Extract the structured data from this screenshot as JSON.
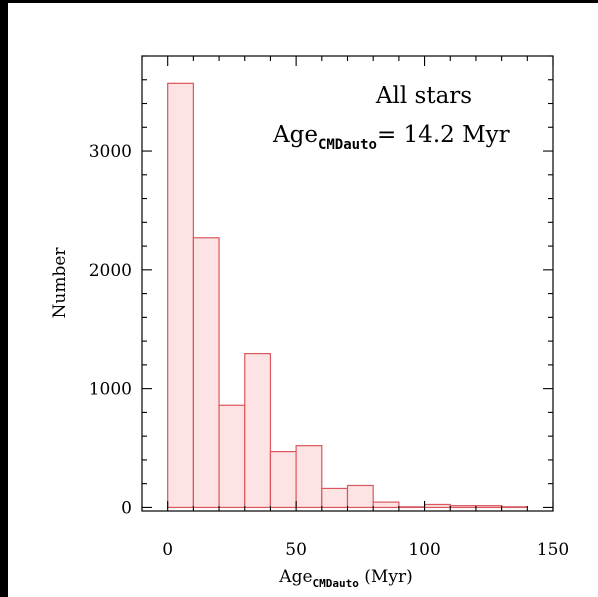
{
  "chart_data": {
    "type": "bar",
    "title": "All stars",
    "annotation": {
      "prefix": "Age",
      "subscript": "CMDauto",
      "suffix": "= 14.2 Myr"
    },
    "xlabel": {
      "prefix": "Age",
      "subscript": "CMDauto",
      "suffix": " (Myr)"
    },
    "ylabel": "Number",
    "xlim": [
      -10,
      150
    ],
    "ylim": [
      -30,
      3800
    ],
    "x_ticks": [
      0,
      50,
      100,
      150
    ],
    "y_ticks": [
      0,
      1000,
      2000,
      3000
    ],
    "x_tick_labels": [
      "0",
      "50",
      "100",
      "150"
    ],
    "y_tick_labels": [
      "0",
      "1000",
      "2000",
      "3000"
    ],
    "bin_width": 10,
    "bins": [
      {
        "x0": 0,
        "x1": 10,
        "value": 3570
      },
      {
        "x0": 10,
        "x1": 20,
        "value": 2270
      },
      {
        "x0": 20,
        "x1": 30,
        "value": 860
      },
      {
        "x0": 30,
        "x1": 40,
        "value": 1295
      },
      {
        "x0": 40,
        "x1": 50,
        "value": 470
      },
      {
        "x0": 50,
        "x1": 60,
        "value": 520
      },
      {
        "x0": 60,
        "x1": 70,
        "value": 160
      },
      {
        "x0": 70,
        "x1": 80,
        "value": 185
      },
      {
        "x0": 80,
        "x1": 90,
        "value": 45
      },
      {
        "x0": 90,
        "x1": 100,
        "value": 5
      },
      {
        "x0": 100,
        "x1": 110,
        "value": 25
      },
      {
        "x0": 110,
        "x1": 120,
        "value": 15
      },
      {
        "x0": 120,
        "x1": 130,
        "value": 15
      },
      {
        "x0": 130,
        "x1": 140,
        "value": 5
      }
    ],
    "grid": false,
    "bar_fill": "#fde3e3",
    "bar_edge": "#d9575d",
    "axis_color": "#000000"
  }
}
